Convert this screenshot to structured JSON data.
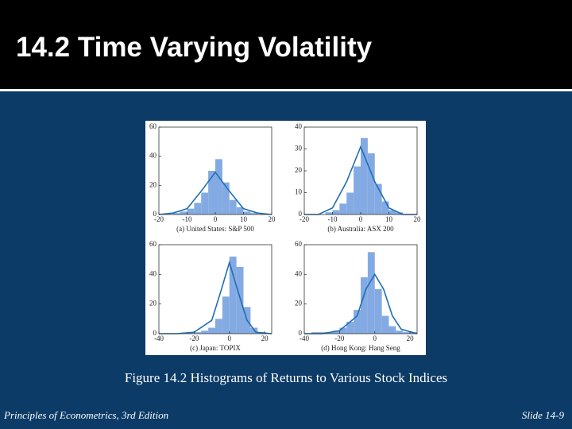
{
  "slide": {
    "title": "14.2 Time Varying Volatility",
    "caption": "Figure 14.2 Histograms of Returns to Various Stock Indices",
    "footer_left": "Principles of Econometrics, 3rd Edition",
    "footer_right": "Slide 14-9"
  },
  "chart_data": [
    {
      "type": "histogram",
      "label": "(a) United States: S&P 500",
      "color": "#84aae3",
      "line_color": "#1f6fb4",
      "bins": [
        -20,
        -17.5,
        -15,
        -12.5,
        -10,
        -7.5,
        -5,
        -2.5,
        0,
        2.5,
        5,
        7.5,
        10,
        12.5,
        15,
        17.5,
        20
      ],
      "values": [
        0,
        0,
        1,
        2,
        4,
        8,
        15,
        30,
        38,
        22,
        10,
        5,
        2,
        1,
        0,
        0
      ],
      "curve": {
        "x": [
          -20,
          -15,
          -10,
          -5,
          0,
          5,
          10,
          15,
          20
        ],
        "y": [
          0,
          1,
          4,
          16,
          29,
          16,
          4,
          1,
          0
        ]
      },
      "xlim": [
        -20,
        20
      ],
      "xticks": [
        -20,
        -10,
        0,
        10,
        20
      ],
      "ylim": [
        0,
        60
      ],
      "yticks": [
        0,
        20,
        40,
        60
      ]
    },
    {
      "type": "histogram",
      "label": "(b) Australia: ASX 200",
      "color": "#84aae3",
      "line_color": "#1f6fb4",
      "bins": [
        -20,
        -17.5,
        -15,
        -12.5,
        -10,
        -7.5,
        -5,
        -2.5,
        0,
        2.5,
        5,
        7.5,
        10,
        12.5,
        15,
        17.5,
        20
      ],
      "values": [
        0,
        0,
        0,
        1,
        2,
        5,
        10,
        22,
        35,
        28,
        14,
        6,
        2,
        1,
        0,
        0
      ],
      "curve": {
        "x": [
          -20,
          -15,
          -10,
          -5,
          0,
          5,
          10,
          15,
          20
        ],
        "y": [
          0,
          0,
          3,
          15,
          31,
          15,
          3,
          0,
          0
        ]
      },
      "xlim": [
        -20,
        20
      ],
      "xticks": [
        -20,
        -10,
        0,
        10,
        20
      ],
      "ylim": [
        0,
        40
      ],
      "yticks": [
        0,
        10,
        20,
        30,
        40
      ]
    },
    {
      "type": "histogram",
      "label": "(c) Japan: TOPIX",
      "color": "#84aae3",
      "line_color": "#1f6fb4",
      "bins": [
        -40,
        -36,
        -32,
        -28,
        -24,
        -20,
        -16,
        -12,
        -8,
        -4,
        0,
        4,
        8,
        12,
        16,
        20,
        24
      ],
      "values": [
        0,
        0,
        0,
        0,
        1,
        1,
        2,
        4,
        10,
        25,
        52,
        45,
        18,
        4,
        1,
        0
      ],
      "curve": {
        "x": [
          -40,
          -30,
          -20,
          -10,
          -5,
          0,
          5,
          10,
          15,
          24
        ],
        "y": [
          0,
          0,
          1,
          9,
          28,
          48,
          28,
          9,
          1,
          0
        ]
      },
      "xlim": [
        -40,
        24
      ],
      "xticks": [
        -40,
        -20,
        0,
        20
      ],
      "ylim": [
        0,
        60
      ],
      "yticks": [
        0,
        20,
        40,
        60
      ]
    },
    {
      "type": "histogram",
      "label": "(d) Hong Kong: Hang Seng",
      "color": "#84aae3",
      "line_color": "#1f6fb4",
      "bins": [
        -40,
        -36,
        -32,
        -28,
        -24,
        -20,
        -16,
        -12,
        -8,
        -4,
        0,
        4,
        8,
        12,
        16,
        20,
        24
      ],
      "values": [
        0,
        1,
        1,
        1,
        2,
        4,
        8,
        16,
        38,
        55,
        30,
        12,
        5,
        2,
        1,
        1
      ],
      "curve": {
        "x": [
          -40,
          -30,
          -20,
          -10,
          -5,
          0,
          5,
          10,
          15,
          24
        ],
        "y": [
          0,
          0,
          2,
          12,
          30,
          40,
          30,
          12,
          3,
          0
        ]
      },
      "xlim": [
        -40,
        24
      ],
      "xticks": [
        -40,
        -20,
        0,
        20
      ],
      "ylim": [
        0,
        60
      ],
      "yticks": [
        0,
        20,
        40,
        60
      ]
    }
  ]
}
